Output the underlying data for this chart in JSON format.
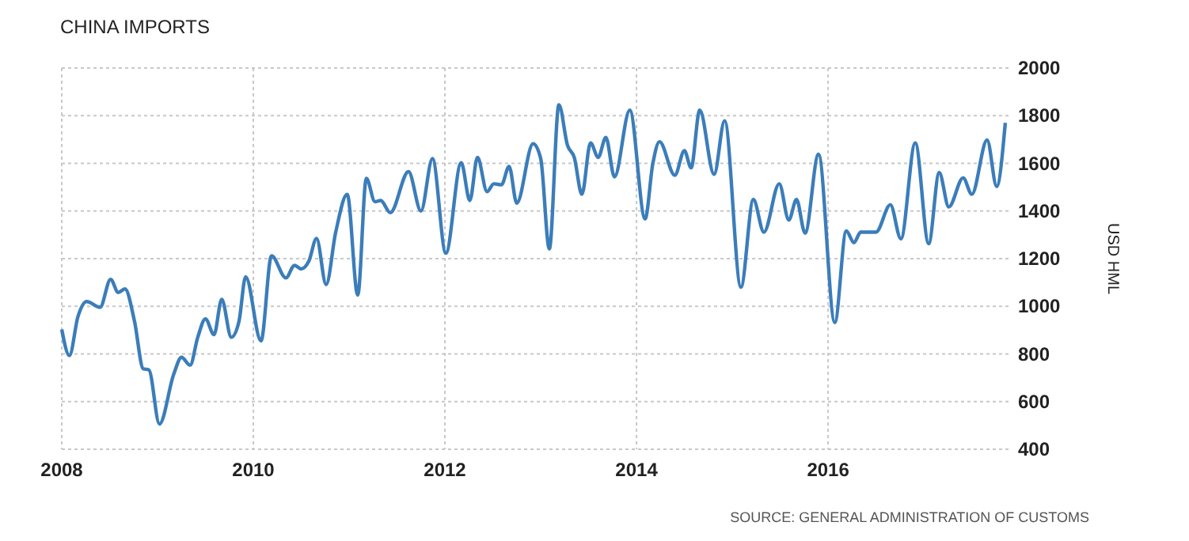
{
  "chart_data": {
    "type": "line",
    "title": "CHINA IMPORTS",
    "ylabel": "USD HML",
    "annotations": [
      "SOURCE: GENERAL ADMINISTRATION OF CUSTOMS"
    ],
    "xlim": [
      2008,
      2017.9
    ],
    "xticks": [
      {
        "value": 2008,
        "label": "2008"
      },
      {
        "value": 2010,
        "label": "2010"
      },
      {
        "value": 2012,
        "label": "2012"
      },
      {
        "value": 2014,
        "label": "2014"
      },
      {
        "value": 2016,
        "label": "2016"
      }
    ],
    "ylim": [
      400,
      2000
    ],
    "yticks": [
      400,
      600,
      800,
      1000,
      1200,
      1400,
      1600,
      1800,
      2000
    ],
    "grid": true,
    "series": [
      {
        "color": "#3b7dba",
        "x": [
          2008.0,
          2008.08,
          2008.17,
          2008.26,
          2008.4,
          2008.51,
          2008.59,
          2008.66,
          2008.76,
          2008.85,
          2008.91,
          2009.02,
          2009.17,
          2009.25,
          2009.34,
          2009.42,
          2009.5,
          2009.59,
          2009.67,
          2009.77,
          2009.85,
          2009.92,
          2010.08,
          2010.19,
          2010.34,
          2010.43,
          2010.5,
          2010.58,
          2010.66,
          2010.76,
          2010.86,
          2010.98,
          2011.09,
          2011.18,
          2011.27,
          2011.33,
          2011.43,
          2011.62,
          2011.75,
          2011.87,
          2012.01,
          2012.17,
          2012.26,
          2012.34,
          2012.44,
          2012.51,
          2012.59,
          2012.67,
          2012.75,
          2012.92,
          2013.0,
          2013.09,
          2013.19,
          2013.28,
          2013.35,
          2013.43,
          2013.52,
          2013.6,
          2013.68,
          2013.77,
          2013.93,
          2014.09,
          2014.17,
          2014.24,
          2014.4,
          2014.5,
          2014.57,
          2014.66,
          2014.81,
          2014.92,
          2015.09,
          2015.22,
          2015.33,
          2015.49,
          2015.59,
          2015.67,
          2015.76,
          2015.9,
          2016.07,
          2016.19,
          2016.27,
          2016.34,
          2016.5,
          2016.65,
          2016.76,
          2016.91,
          2017.05,
          2017.16,
          2017.26,
          2017.41,
          2017.5,
          2017.66,
          2017.76,
          2017.85
        ],
        "values": [
          903,
          793,
          958,
          1020,
          996,
          1113,
          1058,
          1073,
          936,
          738,
          733,
          506,
          716,
          786,
          753,
          870,
          947,
          881,
          1029,
          870,
          936,
          1124,
          855,
          1212,
          1119,
          1172,
          1157,
          1190,
          1285,
          1091,
          1311,
          1470,
          1047,
          1537,
          1439,
          1444,
          1393,
          1565,
          1400,
          1620,
          1223,
          1603,
          1444,
          1625,
          1481,
          1514,
          1510,
          1587,
          1433,
          1682,
          1620,
          1241,
          1846,
          1675,
          1625,
          1470,
          1686,
          1625,
          1709,
          1543,
          1823,
          1367,
          1598,
          1691,
          1550,
          1653,
          1581,
          1823,
          1554,
          1779,
          1080,
          1448,
          1311,
          1514,
          1362,
          1448,
          1307,
          1638,
          932,
          1316,
          1267,
          1311,
          1311,
          1426,
          1283,
          1686,
          1263,
          1561,
          1417,
          1539,
          1470,
          1698,
          1503,
          1770
        ]
      }
    ]
  }
}
